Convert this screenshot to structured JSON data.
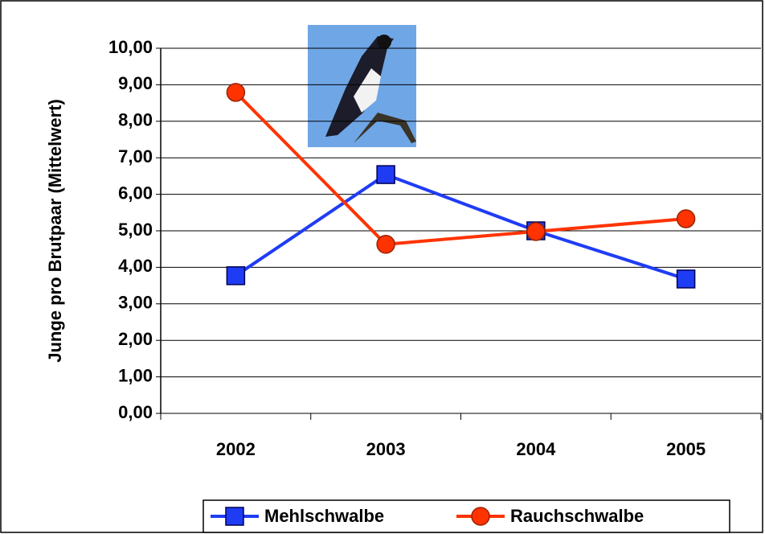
{
  "chart_data": {
    "type": "line",
    "y_label": "Junge pro Brutpaar (Mittelwert)",
    "categories": [
      "2002",
      "2003",
      "2004",
      "2005"
    ],
    "series": [
      {
        "name": "Mehlschwalbe",
        "color": "#1f3cf5",
        "marker": "square",
        "values": [
          3.77,
          6.54,
          5.0,
          3.68
        ]
      },
      {
        "name": "Rauchschwalbe",
        "color": "#ff3300",
        "marker": "circle",
        "values": [
          8.79,
          4.63,
          4.98,
          5.33
        ]
      }
    ],
    "ylim": [
      0,
      10
    ],
    "yticks": [
      {
        "value": 0,
        "label": "0,00"
      },
      {
        "value": 1,
        "label": "1,00"
      },
      {
        "value": 2,
        "label": "2,00"
      },
      {
        "value": 3,
        "label": "3,00"
      },
      {
        "value": 4,
        "label": "4,00"
      },
      {
        "value": 5,
        "label": "5,00"
      },
      {
        "value": 6,
        "label": "6,00"
      },
      {
        "value": 7,
        "label": "7,00"
      },
      {
        "value": 8,
        "label": "8,00"
      },
      {
        "value": 9,
        "label": "9,00"
      },
      {
        "value": 10,
        "label": "10,00"
      }
    ],
    "grid": true
  }
}
